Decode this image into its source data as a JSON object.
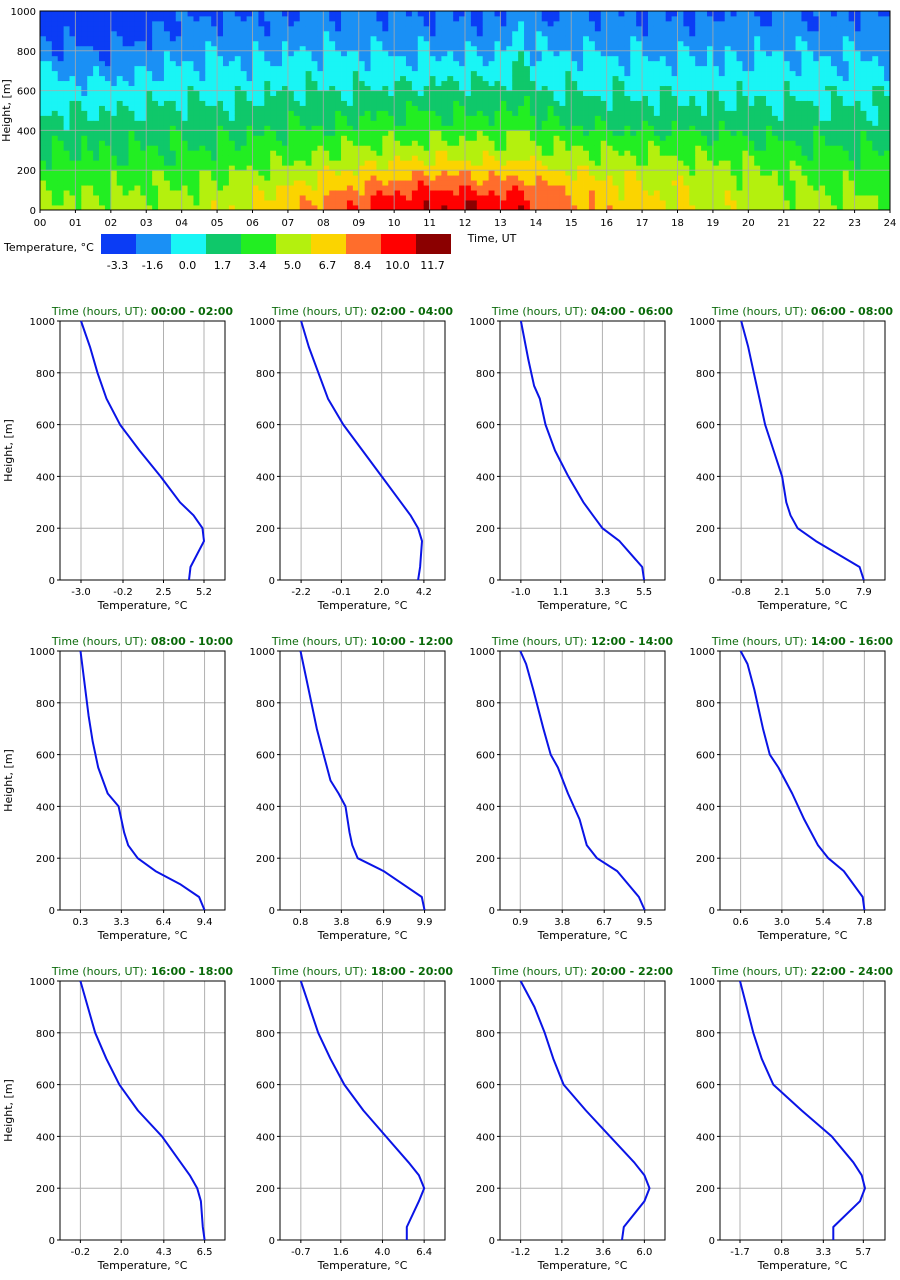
{
  "heatmap": {
    "ylabel": "Height, [m]",
    "xlabel": "Time, UT",
    "y_ticks": [
      "0",
      "200",
      "400",
      "600",
      "800",
      "1000"
    ],
    "x_ticks": [
      "00",
      "01",
      "02",
      "03",
      "04",
      "05",
      "06",
      "07",
      "08",
      "09",
      "10",
      "11",
      "12",
      "13",
      "14",
      "15",
      "16",
      "17",
      "18",
      "19",
      "20",
      "21",
      "22",
      "23",
      "24"
    ],
    "legend_title": "Temperature, °C",
    "legend_colors": [
      "#0b3cf5",
      "#1a90f5",
      "#19f5f5",
      "#0fc86a",
      "#22ee22",
      "#b4f00e",
      "#fbd400",
      "#ff6d2c",
      "#ff0000",
      "#8b0000"
    ],
    "legend_labels": [
      "-3.3",
      "-1.6",
      "0.0",
      "1.7",
      "3.4",
      "5.0",
      "6.7",
      "8.4",
      "10.0",
      "11.7"
    ]
  },
  "profiles_common": {
    "ylabel": "Height, [m]",
    "xlabel": "Temperature, °C",
    "y_ticks": [
      "0",
      "200",
      "400",
      "600",
      "800",
      "1000"
    ],
    "title_prefix": "Time (hours, UT): "
  },
  "chart_data": [
    {
      "type": "heatmap",
      "x_range": [
        0,
        24
      ],
      "y_range": [
        0,
        1000
      ],
      "xlabel": "Time, UT",
      "ylabel": "Height, [m]",
      "colorbar_title": "Temperature, °C",
      "colorbar_ticks": [
        -3.3,
        -1.6,
        0.0,
        1.7,
        3.4,
        5.0,
        6.7,
        8.4,
        10.0,
        11.7
      ],
      "grid": true
    },
    {
      "type": "line",
      "period": "00:00 - 02:00",
      "xticks": [
        "-3.0",
        "-0.2",
        "2.5",
        "5.2"
      ],
      "xlim": [
        -4.4,
        6.6
      ],
      "ylim": [
        0,
        1000
      ],
      "points": [
        [
          4.2,
          0
        ],
        [
          4.3,
          50
        ],
        [
          5.2,
          150
        ],
        [
          5.1,
          200
        ],
        [
          4.5,
          250
        ],
        [
          3.6,
          300
        ],
        [
          2.3,
          400
        ],
        [
          0.9,
          500
        ],
        [
          -0.4,
          600
        ],
        [
          -1.3,
          700
        ],
        [
          -1.9,
          800
        ],
        [
          -2.4,
          900
        ],
        [
          -3.0,
          1000
        ]
      ]
    },
    {
      "type": "line",
      "period": "02:00 - 04:00",
      "xticks": [
        "-2.2",
        "-0.1",
        "2.0",
        "4.2"
      ],
      "xlim": [
        -3.3,
        5.3
      ],
      "ylim": [
        0,
        1000
      ],
      "points": [
        [
          3.9,
          0
        ],
        [
          4.0,
          50
        ],
        [
          4.1,
          150
        ],
        [
          3.9,
          200
        ],
        [
          3.5,
          250
        ],
        [
          3.0,
          300
        ],
        [
          2.0,
          400
        ],
        [
          1.0,
          500
        ],
        [
          0.0,
          600
        ],
        [
          -0.8,
          700
        ],
        [
          -1.3,
          800
        ],
        [
          -1.8,
          900
        ],
        [
          -2.2,
          1000
        ]
      ]
    },
    {
      "type": "line",
      "period": "04:00 - 06:00",
      "xticks": [
        "-1.0",
        "1.1",
        "3.3",
        "5.5"
      ],
      "xlim": [
        -2.1,
        6.6
      ],
      "ylim": [
        0,
        1000
      ],
      "points": [
        [
          5.5,
          0
        ],
        [
          5.4,
          50
        ],
        [
          4.2,
          150
        ],
        [
          3.3,
          200
        ],
        [
          2.8,
          250
        ],
        [
          2.3,
          300
        ],
        [
          1.5,
          400
        ],
        [
          0.8,
          500
        ],
        [
          0.3,
          600
        ],
        [
          0.0,
          700
        ],
        [
          -0.3,
          750
        ],
        [
          -0.6,
          850
        ],
        [
          -1.0,
          1000
        ]
      ]
    },
    {
      "type": "line",
      "period": "06:00 - 08:00",
      "xticks": [
        "-0.8",
        "2.1",
        "5.0",
        "7.9"
      ],
      "xlim": [
        -2.3,
        9.4
      ],
      "ylim": [
        0,
        1000
      ],
      "points": [
        [
          7.9,
          0
        ],
        [
          7.6,
          50
        ],
        [
          4.5,
          150
        ],
        [
          3.2,
          200
        ],
        [
          2.7,
          250
        ],
        [
          2.4,
          300
        ],
        [
          2.1,
          400
        ],
        [
          1.5,
          500
        ],
        [
          0.9,
          600
        ],
        [
          0.5,
          700
        ],
        [
          0.1,
          800
        ],
        [
          -0.3,
          900
        ],
        [
          -0.8,
          1000
        ]
      ]
    },
    {
      "type": "line",
      "period": "08:00 - 10:00",
      "xticks": [
        "0.3",
        "3.3",
        "6.4",
        "9.4"
      ],
      "xlim": [
        -1.2,
        10.9
      ],
      "ylim": [
        0,
        1000
      ],
      "points": [
        [
          9.4,
          0
        ],
        [
          9.0,
          50
        ],
        [
          7.6,
          100
        ],
        [
          5.8,
          150
        ],
        [
          4.5,
          200
        ],
        [
          3.8,
          250
        ],
        [
          3.5,
          300
        ],
        [
          3.1,
          400
        ],
        [
          2.3,
          450
        ],
        [
          1.6,
          550
        ],
        [
          1.2,
          650
        ],
        [
          0.9,
          750
        ],
        [
          0.3,
          1000
        ]
      ]
    },
    {
      "type": "line",
      "period": "10:00 - 12:00",
      "xticks": [
        "0.8",
        "3.8",
        "6.9",
        "9.9"
      ],
      "xlim": [
        -0.7,
        11.4
      ],
      "ylim": [
        0,
        1000
      ],
      "points": [
        [
          9.9,
          0
        ],
        [
          9.7,
          50
        ],
        [
          6.9,
          150
        ],
        [
          5.0,
          200
        ],
        [
          4.6,
          250
        ],
        [
          4.4,
          300
        ],
        [
          4.1,
          400
        ],
        [
          3.6,
          450
        ],
        [
          3.0,
          500
        ],
        [
          2.5,
          600
        ],
        [
          2.0,
          700
        ],
        [
          1.6,
          800
        ],
        [
          0.8,
          1000
        ]
      ]
    },
    {
      "type": "line",
      "period": "12:00 - 14:00",
      "xticks": [
        "0.9",
        "3.8",
        "6.7",
        "9.5"
      ],
      "xlim": [
        -0.5,
        10.9
      ],
      "ylim": [
        0,
        1000
      ],
      "points": [
        [
          9.5,
          0
        ],
        [
          9.1,
          50
        ],
        [
          7.6,
          150
        ],
        [
          6.2,
          200
        ],
        [
          5.5,
          250
        ],
        [
          5.0,
          350
        ],
        [
          4.2,
          450
        ],
        [
          3.5,
          550
        ],
        [
          3.0,
          600
        ],
        [
          2.5,
          700
        ],
        [
          1.8,
          850
        ],
        [
          1.3,
          950
        ],
        [
          0.9,
          1000
        ]
      ]
    },
    {
      "type": "line",
      "period": "14:00 - 16:00",
      "xticks": [
        "0.6",
        "3.0",
        "5.4",
        "7.8"
      ],
      "xlim": [
        -0.6,
        9.0
      ],
      "ylim": [
        0,
        1000
      ],
      "points": [
        [
          7.8,
          0
        ],
        [
          7.7,
          50
        ],
        [
          6.6,
          150
        ],
        [
          5.7,
          200
        ],
        [
          5.1,
          250
        ],
        [
          4.3,
          350
        ],
        [
          3.6,
          450
        ],
        [
          2.8,
          550
        ],
        [
          2.3,
          600
        ],
        [
          1.9,
          700
        ],
        [
          1.4,
          850
        ],
        [
          1.0,
          950
        ],
        [
          0.6,
          1000
        ]
      ]
    },
    {
      "type": "line",
      "period": "16:00 - 18:00",
      "xticks": [
        "-0.2",
        "2.0",
        "4.3",
        "6.5"
      ],
      "xlim": [
        -1.3,
        7.6
      ],
      "ylim": [
        0,
        1000
      ],
      "points": [
        [
          6.5,
          0
        ],
        [
          6.4,
          50
        ],
        [
          6.3,
          150
        ],
        [
          6.1,
          200
        ],
        [
          5.7,
          250
        ],
        [
          5.2,
          300
        ],
        [
          4.2,
          400
        ],
        [
          2.9,
          500
        ],
        [
          1.9,
          600
        ],
        [
          1.2,
          700
        ],
        [
          0.6,
          800
        ],
        [
          0.2,
          900
        ],
        [
          -0.2,
          1000
        ]
      ]
    },
    {
      "type": "line",
      "period": "18:00 - 20:00",
      "xticks": [
        "-0.7",
        "1.6",
        "4.0",
        "6.4"
      ],
      "xlim": [
        -1.9,
        7.6
      ],
      "ylim": [
        0,
        1000
      ],
      "points": [
        [
          5.4,
          0
        ],
        [
          5.4,
          50
        ],
        [
          6.1,
          150
        ],
        [
          6.4,
          200
        ],
        [
          6.1,
          250
        ],
        [
          5.5,
          300
        ],
        [
          4.2,
          400
        ],
        [
          2.9,
          500
        ],
        [
          1.8,
          600
        ],
        [
          1.0,
          700
        ],
        [
          0.3,
          800
        ],
        [
          -0.2,
          900
        ],
        [
          -0.7,
          1000
        ]
      ]
    },
    {
      "type": "line",
      "period": "20:00 - 22:00",
      "xticks": [
        "-1.2",
        "1.2",
        "3.6",
        "6.0"
      ],
      "xlim": [
        -2.4,
        7.2
      ],
      "ylim": [
        0,
        1000
      ],
      "points": [
        [
          4.7,
          0
        ],
        [
          4.8,
          50
        ],
        [
          6.0,
          150
        ],
        [
          6.3,
          200
        ],
        [
          6.0,
          250
        ],
        [
          5.4,
          300
        ],
        [
          4.0,
          400
        ],
        [
          2.6,
          500
        ],
        [
          1.3,
          600
        ],
        [
          0.7,
          700
        ],
        [
          0.2,
          800
        ],
        [
          -0.4,
          900
        ],
        [
          -1.2,
          1000
        ]
      ]
    },
    {
      "type": "line",
      "period": "22:00 - 24:00",
      "xticks": [
        "-1.7",
        "0.8",
        "3.3",
        "5.7"
      ],
      "xlim": [
        -2.9,
        7.0
      ],
      "ylim": [
        0,
        1000
      ],
      "points": [
        [
          3.9,
          0
        ],
        [
          3.9,
          50
        ],
        [
          5.5,
          150
        ],
        [
          5.8,
          200
        ],
        [
          5.6,
          250
        ],
        [
          5.1,
          300
        ],
        [
          3.8,
          400
        ],
        [
          2.0,
          500
        ],
        [
          0.3,
          600
        ],
        [
          -0.4,
          700
        ],
        [
          -0.9,
          800
        ],
        [
          -1.3,
          900
        ],
        [
          -1.7,
          1000
        ]
      ]
    }
  ]
}
